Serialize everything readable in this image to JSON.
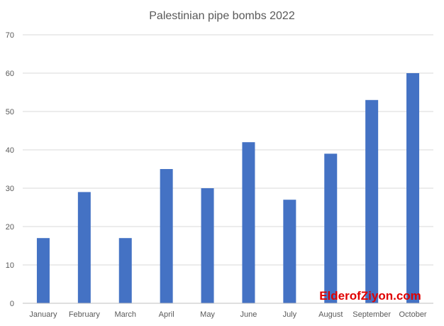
{
  "chart_data": {
    "type": "bar",
    "title": "Palestinian pipe bombs 2022",
    "categories": [
      "January",
      "February",
      "March",
      "April",
      "May",
      "June",
      "July",
      "August",
      "September",
      "October"
    ],
    "values": [
      17,
      29,
      17,
      35,
      30,
      42,
      27,
      39,
      53,
      60
    ],
    "xlabel": "",
    "ylabel": "",
    "ylim": [
      0,
      70
    ],
    "yticks": [
      0,
      10,
      20,
      30,
      40,
      50,
      60,
      70
    ],
    "grid": true,
    "legend": "none",
    "bar_color": "#4472c4"
  },
  "watermark": {
    "text": "ElderofZiyon.com",
    "color": "#e00000"
  }
}
